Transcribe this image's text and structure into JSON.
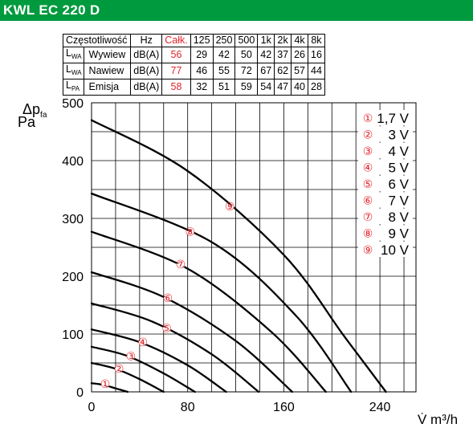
{
  "header": {
    "title": "KWL EC 220 D"
  },
  "table": {
    "header": [
      "Częstotliwość",
      "Hz",
      "Całk.",
      "125",
      "250",
      "500",
      "1k",
      "2k",
      "4k",
      "8k"
    ],
    "rows": [
      {
        "symbol": "L",
        "sub": "WA",
        "name": "Wywiew",
        "unit": "dB(A)",
        "total": "56",
        "values": [
          "29",
          "42",
          "50",
          "42",
          "37",
          "26",
          "16"
        ]
      },
      {
        "symbol": "L",
        "sub": "WA",
        "name": "Nawiew",
        "unit": "dB(A)",
        "total": "77",
        "values": [
          "46",
          "55",
          "72",
          "67",
          "62",
          "57",
          "44"
        ]
      },
      {
        "symbol": "L",
        "sub": "PA",
        "name": "Emisja",
        "unit": "dB(A)",
        "total": "58",
        "values": [
          "32",
          "51",
          "59",
          "54",
          "47",
          "40",
          "28"
        ]
      }
    ]
  },
  "chart_data": {
    "type": "line",
    "ylabel": "Δp",
    "ylabel_sub": "fa",
    "ylabel_unit": "Pa",
    "xlabel": "V̇ m³/h",
    "xlim": [
      0,
      270
    ],
    "ylim": [
      0,
      500
    ],
    "xticks": [
      0,
      80,
      160,
      240
    ],
    "yticks": [
      0,
      100,
      200,
      300,
      400,
      500
    ],
    "grid": true,
    "legend_position": "top-right",
    "colors": {
      "curve": "#000000",
      "marker": "#e0262b",
      "grid": "#000000"
    },
    "series": [
      {
        "name": "1,7 V",
        "marker": "①",
        "points": [
          [
            0,
            15
          ],
          [
            10,
            12
          ],
          [
            20,
            6
          ],
          [
            30,
            0
          ]
        ]
      },
      {
        "name": "3 V",
        "marker": "②",
        "points": [
          [
            0,
            50
          ],
          [
            20,
            40
          ],
          [
            40,
            22
          ],
          [
            60,
            0
          ]
        ]
      },
      {
        "name": "4 V",
        "marker": "③",
        "points": [
          [
            0,
            78
          ],
          [
            30,
            62
          ],
          [
            60,
            32
          ],
          [
            86,
            0
          ]
        ]
      },
      {
        "name": "5 V",
        "marker": "④",
        "points": [
          [
            0,
            108
          ],
          [
            40,
            86
          ],
          [
            80,
            46
          ],
          [
            112,
            0
          ]
        ]
      },
      {
        "name": "6 V",
        "marker": "⑤",
        "points": [
          [
            0,
            153
          ],
          [
            50,
            122
          ],
          [
            100,
            65
          ],
          [
            139,
            0
          ]
        ]
      },
      {
        "name": "7 V",
        "marker": "⑥",
        "points": [
          [
            0,
            207
          ],
          [
            60,
            164
          ],
          [
            120,
            88
          ],
          [
            167,
            0
          ]
        ]
      },
      {
        "name": "8 V",
        "marker": "⑦",
        "points": [
          [
            0,
            277
          ],
          [
            80,
            213
          ],
          [
            150,
            103
          ],
          [
            195,
            0
          ]
        ]
      },
      {
        "name": "9 V",
        "marker": "⑧",
        "points": [
          [
            0,
            343
          ],
          [
            100,
            259
          ],
          [
            170,
            132
          ],
          [
            216,
            0
          ]
        ]
      },
      {
        "name": "10 V",
        "marker": "⑨",
        "points": [
          [
            0,
            470
          ],
          [
            80,
            382
          ],
          [
            160,
            237
          ],
          [
            210,
            97
          ],
          [
            245,
            0
          ]
        ]
      }
    ]
  }
}
